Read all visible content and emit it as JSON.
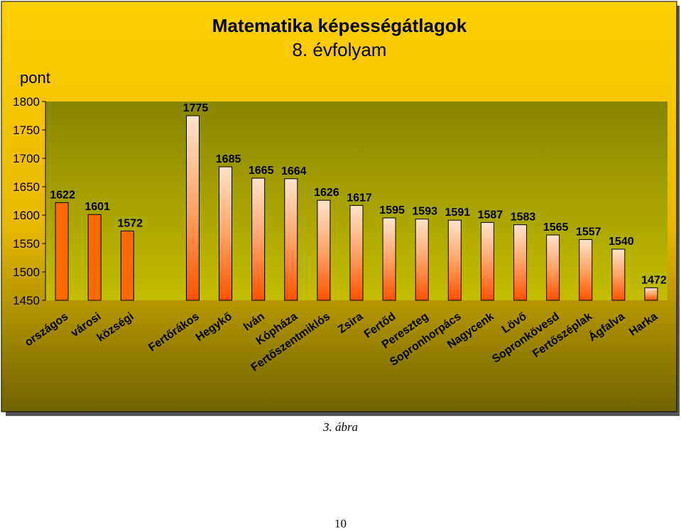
{
  "chart_data": {
    "type": "bar",
    "title": "Matematika képességátlagok",
    "subtitle": "8. évfolyam",
    "ylabel": "pont",
    "xlabel": "",
    "ylim": [
      1450,
      1800
    ],
    "yticks": [
      1450,
      1500,
      1550,
      1600,
      1650,
      1700,
      1750,
      1800
    ],
    "grid": false,
    "legend": "none",
    "categories": [
      "országos",
      "városi",
      "községi",
      "",
      "Fertőrákos",
      "Hegykő",
      "Iván",
      "Kópháza",
      "Fertőszentmiklós",
      "Zsira",
      "Fertőd",
      "Pereszteg",
      "Sopronhorpács",
      "Nagycenk",
      "Lövő",
      "Sopronkövesd",
      "Fertőszéplak",
      "Ágfalva",
      "Harka"
    ],
    "values": [
      1622,
      1601,
      1572,
      null,
      1775,
      1685,
      1665,
      1664,
      1626,
      1617,
      1595,
      1593,
      1591,
      1587,
      1583,
      1565,
      1557,
      1540,
      1472
    ],
    "colors": {
      "summary_bar": "#ff6a00",
      "settlement_bar_top": "#ffdcc0",
      "settlement_bar_bottom": "#ff5a00",
      "plot_area_top": "#8f8b00",
      "plot_area_bottom": "#bfb800",
      "background_top": "#ffd000",
      "background_bottom": "#706600"
    }
  },
  "caption": "3. ábra",
  "page_number": "10"
}
